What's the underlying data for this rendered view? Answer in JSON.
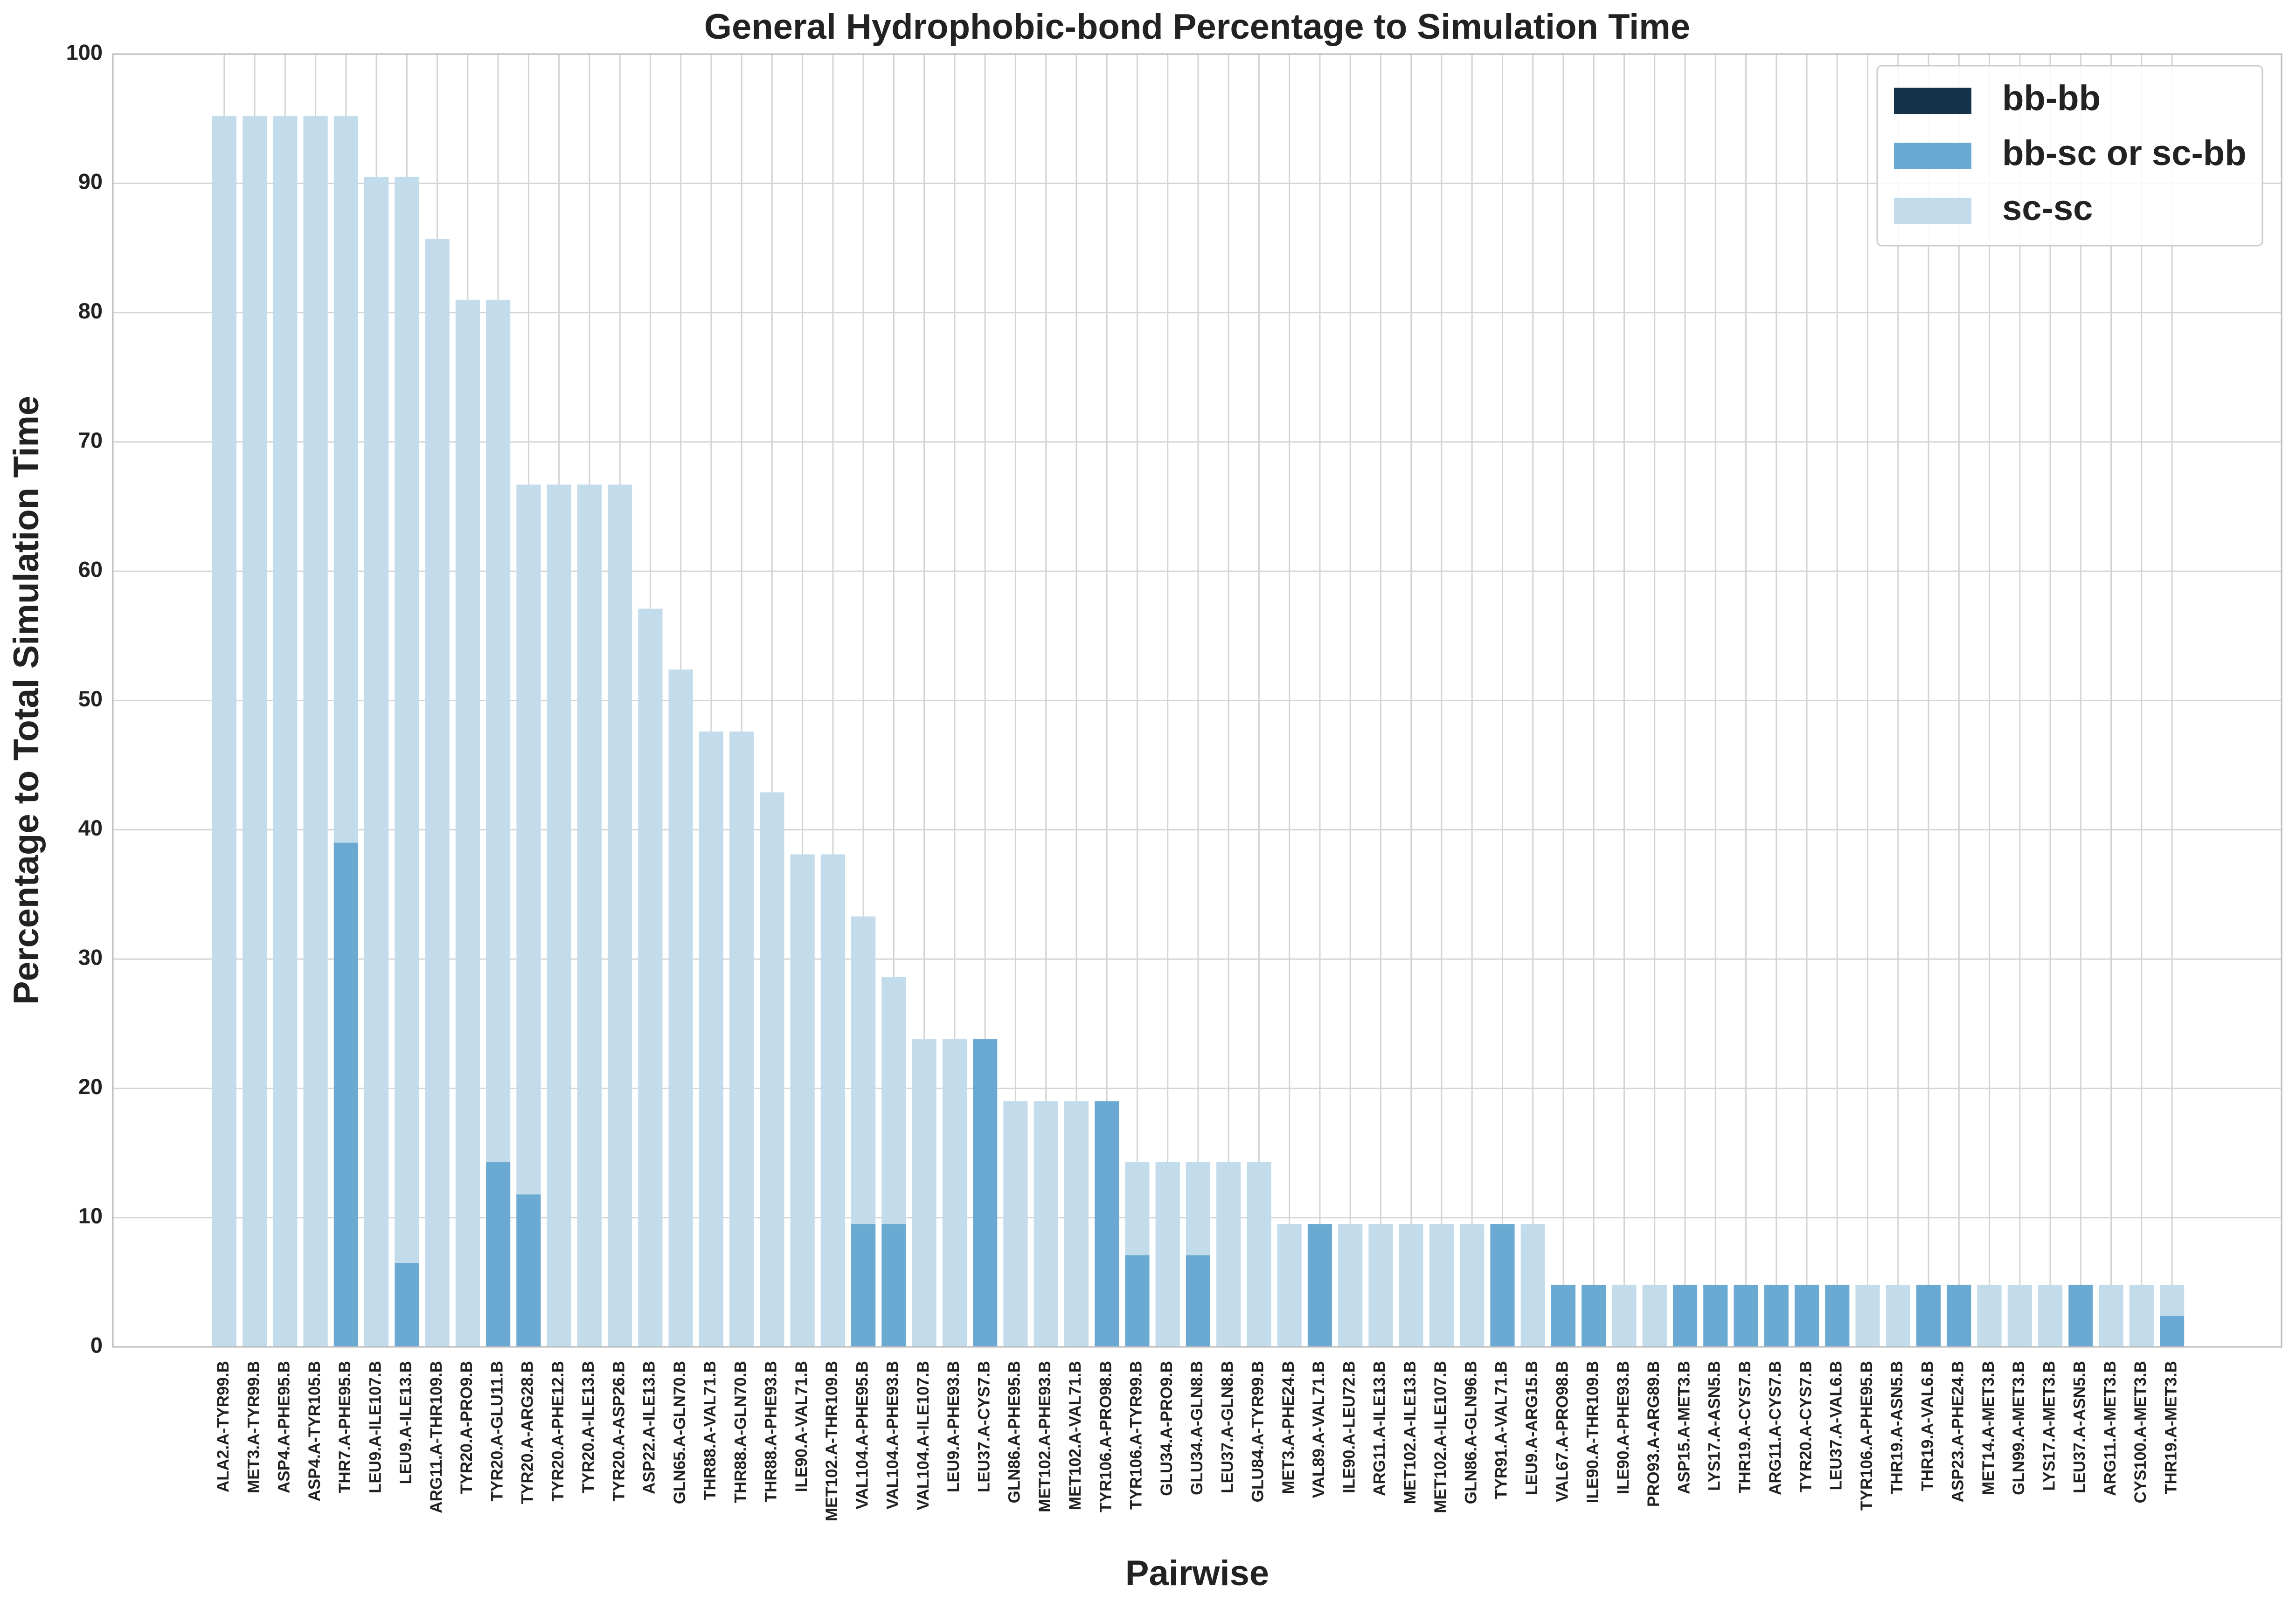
{
  "chart_data": {
    "type": "stacked_bar",
    "title": "General Hydrophobic-bond Percentage to Simulation Time",
    "x_label": "Pairwise",
    "y_label": "Percentage to Total Simulation Time",
    "categories": [
      "ALA2.A-TYR99.B",
      "MET3.A-TYR99.B",
      "ASP4.A-PHE95.B",
      "ASP4.A-TYR105.B",
      "THR7.A-PHE95.B",
      "LEU9.A-ILE107.B",
      "LEU9.A-ILE13.B",
      "ARG11.A-THR109.B",
      "TYR20.A-PRO9.B",
      "TYR20.A-GLU11.B",
      "TYR20.A-ARG28.B",
      "TYR20.A-PHE12.B",
      "TYR20.A-ILE13.B",
      "TYR20.A-ASP26.B",
      "ASP22.A-ILE13.B",
      "GLN65.A-GLN70.B",
      "THR88.A-VAL71.B",
      "THR88.A-GLN70.B",
      "THR88.A-PHE93.B",
      "ILE90.A-VAL71.B",
      "MET102.A-THR109.B",
      "VAL104.A-PHE95.B",
      "VAL104.A-PHE93.B",
      "VAL104.A-ILE107.B",
      "LEU9.A-PHE93.B",
      "LEU37.A-CYS7.B",
      "GLN86.A-PHE95.B",
      "MET102.A-PHE93.B",
      "MET102.A-VAL71.B",
      "TYR106.A-PRO98.B",
      "TYR106.A-TYR99.B",
      "GLU34.A-PRO9.B",
      "GLU34.A-GLN8.B",
      "LEU37.A-GLN8.B",
      "GLU84.A-TYR99.B",
      "MET3.A-PHE24.B",
      "VAL89.A-VAL71.B",
      "ILE90.A-LEU72.B",
      "ARG11.A-ILE13.B",
      "MET102.A-ILE13.B",
      "MET102.A-ILE107.B",
      "GLN86.A-GLN96.B",
      "TYR91.A-VAL71.B",
      "LEU9.A-ARG15.B",
      "VAL67.A-PRO98.B",
      "ILE90.A-THR109.B",
      "ILE90.A-PHE93.B",
      "PRO93.A-ARG89.B",
      "ASP15.A-MET3.B",
      "LYS17.A-ASN5.B",
      "THR19.A-CYS7.B",
      "ARG11.A-CYS7.B",
      "TYR20.A-CYS7.B",
      "LEU37.A-VAL6.B",
      "TYR106.A-PHE95.B",
      "THR19.A-ASN5.B",
      "THR19.A-VAL6.B",
      "ASP23.A-PHE24.B",
      "MET14.A-MET3.B",
      "GLN99.A-MET3.B",
      "LYS17.A-MET3.B",
      "LEU37.A-ASN5.B",
      "ARG11.A-MET3.B",
      "CYS100.A-MET3.B",
      "THR19.A-MET3.B"
    ],
    "series": [
      {
        "name": "bb-bb",
        "color": "#14334a",
        "values": [
          0,
          0,
          0,
          0,
          0,
          0,
          0,
          0,
          0,
          0,
          0,
          0,
          0,
          0,
          0,
          0,
          0,
          0,
          0,
          0,
          0,
          0,
          0,
          0,
          0,
          0,
          0,
          0,
          0,
          0,
          0,
          0,
          0,
          0,
          0,
          0,
          0,
          0,
          0,
          0,
          0,
          0,
          0,
          0,
          0,
          0,
          0,
          0,
          0,
          0,
          0,
          0,
          0,
          0,
          0,
          0,
          0,
          0,
          0,
          0,
          0,
          0,
          0,
          0,
          0
        ]
      },
      {
        "name": "bb-sc or sc-bb",
        "color": "#6aaad2",
        "values": [
          0,
          0,
          0,
          0,
          39,
          0,
          6.5,
          0,
          0,
          14.3,
          11.8,
          0,
          0,
          0,
          0,
          0,
          0,
          0,
          0,
          0,
          0,
          9.5,
          9.5,
          0,
          0,
          23.8,
          0,
          0,
          0,
          19,
          7.1,
          0,
          7.1,
          0,
          0,
          0,
          9.5,
          0,
          0,
          0,
          0,
          0,
          9.5,
          0,
          4.8,
          4.8,
          0,
          0,
          4.8,
          4.8,
          4.8,
          4.8,
          4.8,
          4.8,
          0,
          0,
          4.8,
          4.8,
          0,
          0,
          0,
          4.8,
          0,
          0,
          2.4
        ]
      },
      {
        "name": "sc-sc",
        "color": "#c3dcec",
        "values": [
          95.2,
          95.2,
          95.2,
          95.2,
          56.2,
          90.5,
          84,
          85.7,
          81,
          66.7,
          54.9,
          66.7,
          66.7,
          66.7,
          57.1,
          52.4,
          47.6,
          47.6,
          42.9,
          38.1,
          38.1,
          23.8,
          19.1,
          23.8,
          23.8,
          0,
          19,
          19,
          19,
          0,
          7.2,
          14.3,
          7.2,
          14.3,
          14.3,
          9.5,
          0,
          9.5,
          9.5,
          9.5,
          9.5,
          9.5,
          0,
          9.5,
          0,
          0,
          4.8,
          4.8,
          0,
          0,
          0,
          0,
          0,
          0,
          4.8,
          4.8,
          0,
          0,
          4.8,
          4.8,
          4.8,
          0,
          4.8,
          4.8,
          2.4
        ]
      }
    ],
    "ylim": [
      0,
      100
    ],
    "yticks": [
      0,
      10,
      20,
      30,
      40,
      50,
      60,
      70,
      80,
      90,
      100
    ],
    "grid": true,
    "legend": "upper right"
  }
}
